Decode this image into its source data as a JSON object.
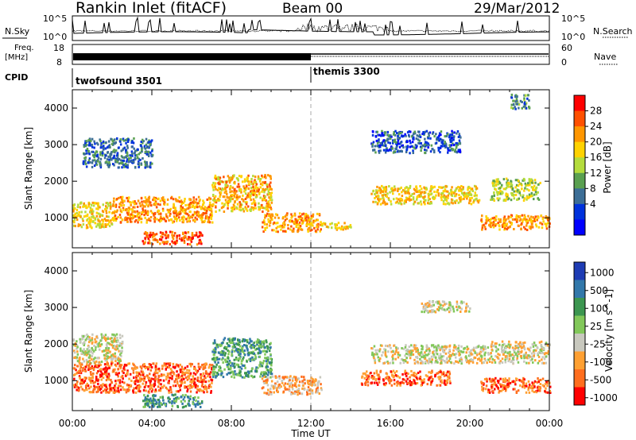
{
  "header": {
    "title": "Rankin Inlet (fitACF)",
    "beam": "Beam 00",
    "date": "29/Mar/2012"
  },
  "strips": {
    "nsky_label": "N.Sky",
    "nsky_ticks": [
      "10^5",
      "10^0"
    ],
    "nsearch_label": "N.Search",
    "nsearch_ticks": [
      "10^5",
      "10^0"
    ],
    "freq_label_1": "Freq.",
    "freq_label_2": "[MHz]",
    "freq_ticks": [
      "18",
      "8"
    ],
    "nave_label": "Nave",
    "nave_ticks": [
      "60",
      "0"
    ],
    "cpid_label": "CPID",
    "cpid_segments": [
      {
        "name": "twofsound 3501",
        "start_hour": 0,
        "end_hour": 12
      },
      {
        "name": "themis 3300",
        "start_hour": 12,
        "end_hour": 24
      }
    ]
  },
  "chart_data": [
    {
      "type": "heatmap",
      "panel": "power",
      "ylabel": "Slant Range [km]",
      "xlabel": "Time UT",
      "x_ticks": [
        "00:00",
        "04:00",
        "08:00",
        "12:00",
        "16:00",
        "20:00",
        "00:00"
      ],
      "xlim_hours": [
        0,
        24
      ],
      "y_ticks": [
        1000,
        2000,
        3000,
        4000
      ],
      "ylim": [
        180,
        4500
      ],
      "colorbar": {
        "label": "Power [dB]",
        "ticks": [
          "28",
          "24",
          "20",
          "16",
          "12",
          "8",
          "4"
        ],
        "colors": [
          "#ff0000",
          "#ff5000",
          "#ff9600",
          "#ffd200",
          "#b4dc3c",
          "#5aa050",
          "#3c6e96",
          "#0032dc",
          "#0000ff"
        ]
      },
      "echo_regions": [
        {
          "t0": 0.0,
          "t1": 2.0,
          "r0": 750,
          "r1": 1450,
          "level": 20
        },
        {
          "t0": 2.0,
          "t1": 7.0,
          "r0": 900,
          "r1": 1600,
          "level": 24
        },
        {
          "t0": 3.5,
          "t1": 6.5,
          "r0": 300,
          "r1": 650,
          "level": 28
        },
        {
          "t0": 7.0,
          "t1": 10.0,
          "r0": 1200,
          "r1": 2200,
          "level": 22
        },
        {
          "t0": 9.5,
          "t1": 12.5,
          "r0": 650,
          "r1": 1150,
          "level": 24
        },
        {
          "t0": 12.5,
          "t1": 14.0,
          "r0": 700,
          "r1": 900,
          "level": 20
        },
        {
          "t0": 15.0,
          "t1": 20.5,
          "r0": 1400,
          "r1": 1900,
          "level": 20
        },
        {
          "t0": 20.5,
          "t1": 24.0,
          "r0": 700,
          "r1": 1100,
          "level": 24
        },
        {
          "t0": 21.0,
          "t1": 23.5,
          "r0": 1500,
          "r1": 2100,
          "level": 16
        },
        {
          "t0": 0.5,
          "t1": 4.0,
          "r0": 2400,
          "r1": 3200,
          "level": 8
        },
        {
          "t0": 15.0,
          "t1": 19.5,
          "r0": 2800,
          "r1": 3400,
          "level": 6
        },
        {
          "t0": 22.0,
          "t1": 23.0,
          "r0": 4000,
          "r1": 4400,
          "level": 10
        }
      ]
    },
    {
      "type": "heatmap",
      "panel": "velocity",
      "ylabel": "Slant Range [km]",
      "xlabel": "Time UT",
      "x_ticks": [
        "00:00",
        "04:00",
        "08:00",
        "12:00",
        "16:00",
        "20:00",
        "00:00"
      ],
      "xlim_hours": [
        0,
        24
      ],
      "y_ticks": [
        1000,
        2000,
        3000,
        4000
      ],
      "ylim": [
        180,
        4500
      ],
      "colorbar": {
        "label": "Velocity [m s^-1]",
        "ticks": [
          "1000",
          "500",
          "100",
          "25",
          "-25",
          "-100",
          "-500",
          "-1000"
        ],
        "colors": [
          "#1e3cb4",
          "#3278aa",
          "#3c9650",
          "#82c85a",
          "#c8c8be",
          "#ffa032",
          "#ff6e1e",
          "#ff0000"
        ]
      },
      "echo_regions": [
        {
          "t0": 0.0,
          "t1": 2.5,
          "r0": 1500,
          "r1": 2300,
          "level": 4
        },
        {
          "t0": 0.0,
          "t1": 7.0,
          "r0": 700,
          "r1": 1500,
          "level": 6
        },
        {
          "t0": 3.5,
          "t1": 6.5,
          "r0": 300,
          "r1": 650,
          "level": 2
        },
        {
          "t0": 7.0,
          "t1": 10.0,
          "r0": 1100,
          "r1": 2200,
          "level": 2
        },
        {
          "t0": 9.5,
          "t1": 12.5,
          "r0": 650,
          "r1": 1150,
          "level": 5
        },
        {
          "t0": 15.0,
          "t1": 21.0,
          "r0": 1500,
          "r1": 2000,
          "level": 4
        },
        {
          "t0": 14.5,
          "t1": 19.0,
          "r0": 900,
          "r1": 1300,
          "level": 6
        },
        {
          "t0": 20.5,
          "t1": 24.0,
          "r0": 700,
          "r1": 1100,
          "level": 6
        },
        {
          "t0": 21.0,
          "t1": 24.0,
          "r0": 1500,
          "r1": 2100,
          "level": 4
        },
        {
          "t0": 17.5,
          "t1": 20.0,
          "r0": 2900,
          "r1": 3200,
          "level": 4
        }
      ]
    }
  ]
}
